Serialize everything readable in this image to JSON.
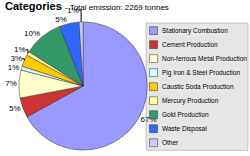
{
  "chart_data": {
    "type": "pie",
    "title": "Categories",
    "subtitle": "- Total emission: 2269 tonnes",
    "categories": [
      "Stationary Combustion",
      "Cement Production",
      "Non-ferrous Metal Production",
      "Pig Iron & Steel Production",
      "Caustic Soda Production",
      "Mercury Production",
      "Gold Production",
      "Waste Disposal",
      "Other"
    ],
    "values": [
      67,
      5,
      7,
      1,
      3,
      1,
      10,
      5,
      1
    ],
    "value_labels": [
      "67%",
      "5%",
      "7%",
      "1%",
      "3%",
      "1%",
      "10%",
      "5%",
      "1%"
    ],
    "colors": [
      "#9999ff",
      "#cc3333",
      "#ffffcc",
      "#ccffff",
      "#ffcc00",
      "#ffff99",
      "#339966",
      "#3366ff",
      "#ccccff"
    ],
    "data_labels": true,
    "legend": "right"
  }
}
